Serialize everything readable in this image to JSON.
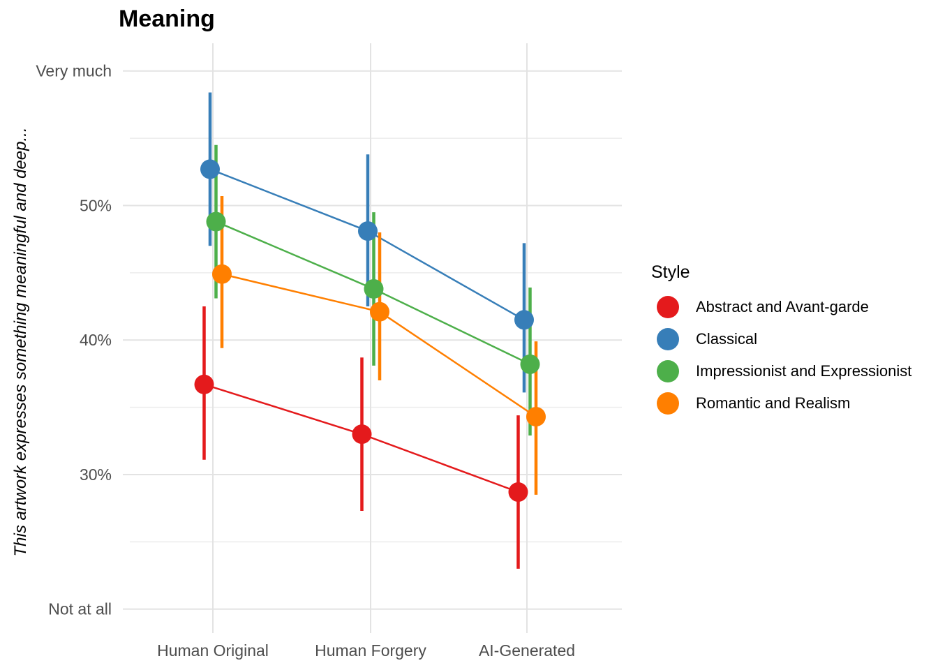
{
  "title": "Meaning",
  "y_axis": {
    "title": "This artwork expresses something meaningful and deep...",
    "tick_label_color": "#4D4D4D",
    "ticks": [
      {
        "label": "Very much",
        "value": 60
      },
      {
        "label": "50%",
        "value": 50
      },
      {
        "label": "40%",
        "value": 40
      },
      {
        "label": "30%",
        "value": 30
      },
      {
        "label": "Not at all",
        "value": 20
      }
    ],
    "minor_ticks": [
      55,
      45,
      35,
      25
    ]
  },
  "x_axis": {
    "tick_label_color": "#4D4D4D",
    "categories": [
      "Human Original",
      "Human Forgery",
      "AI-Generated"
    ]
  },
  "legend": {
    "title": "Style",
    "items": [
      {
        "label": "Abstract and Avant-garde",
        "color": "#E41A1C"
      },
      {
        "label": "Classical",
        "color": "#377EB8"
      },
      {
        "label": "Impressionist and Expressionist",
        "color": "#4DAF4A"
      },
      {
        "label": "Romantic and Realism",
        "color": "#FF7F00"
      }
    ]
  },
  "chart_data": {
    "type": "line",
    "subtype": "pointrange-with-error-bars",
    "title": "Meaning",
    "xlabel": "",
    "ylabel": "This artwork expresses something meaningful and deep...",
    "categories": [
      "Human Original",
      "Human Forgery",
      "AI-Generated"
    ],
    "ylim": [
      20,
      60
    ],
    "y_unit": "%",
    "grid": "major-and-minor",
    "legend_position": "right",
    "grid_major_color": "#E3E3E3",
    "grid_minor_color": "#ECECEC",
    "series": [
      {
        "name": "Abstract and Avant-garde",
        "color": "#E41A1C",
        "values": [
          36.7,
          33.0,
          28.7
        ],
        "ci_low": [
          31.1,
          27.3,
          23.0
        ],
        "ci_high": [
          42.5,
          38.7,
          34.4
        ]
      },
      {
        "name": "Classical",
        "color": "#377EB8",
        "values": [
          52.7,
          48.1,
          41.5
        ],
        "ci_low": [
          47.0,
          42.5,
          36.1
        ],
        "ci_high": [
          58.4,
          53.8,
          47.2
        ]
      },
      {
        "name": "Impressionist and Expressionist",
        "color": "#4DAF4A",
        "values": [
          48.8,
          43.8,
          38.2
        ],
        "ci_low": [
          43.1,
          38.1,
          32.9
        ],
        "ci_high": [
          54.5,
          49.5,
          43.9
        ]
      },
      {
        "name": "Romantic and Realism",
        "color": "#FF7F00",
        "values": [
          44.9,
          42.1,
          34.3
        ],
        "ci_low": [
          39.4,
          37.0,
          28.5
        ],
        "ci_high": [
          50.7,
          48.0,
          39.9
        ]
      }
    ]
  }
}
